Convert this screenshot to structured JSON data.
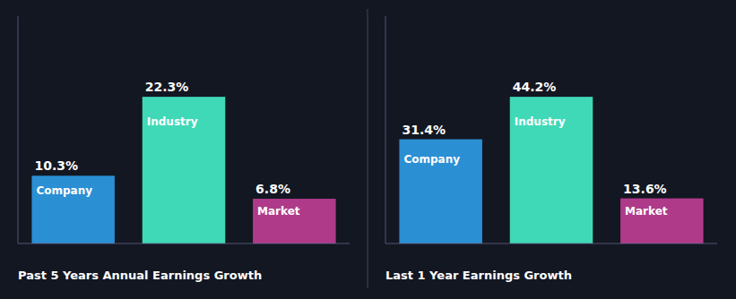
{
  "chart_data": [
    {
      "type": "bar",
      "title": "Past 5 Years Annual Earnings Growth",
      "categories": [
        "Company",
        "Industry",
        "Market"
      ],
      "values": [
        10.3,
        22.3,
        6.8
      ],
      "value_labels": [
        "10.3%",
        "22.3%",
        "6.8%"
      ],
      "colors": [
        "#2b8fd4",
        "#40d9b8",
        "#b03a8a"
      ],
      "ylim": [
        0,
        34.565
      ],
      "data_labels": true,
      "tick_labels": false,
      "grid": false
    },
    {
      "type": "bar",
      "title": "Last 1 Year Earnings Growth",
      "categories": [
        "Company",
        "Industry",
        "Market"
      ],
      "values": [
        31.4,
        44.2,
        13.6
      ],
      "value_labels": [
        "31.4%",
        "44.2%",
        "13.6%"
      ],
      "colors": [
        "#2b8fd4",
        "#40d9b8",
        "#b03a8a"
      ],
      "ylim": [
        0,
        68.51
      ],
      "data_labels": true,
      "tick_labels": false,
      "grid": false
    }
  ]
}
